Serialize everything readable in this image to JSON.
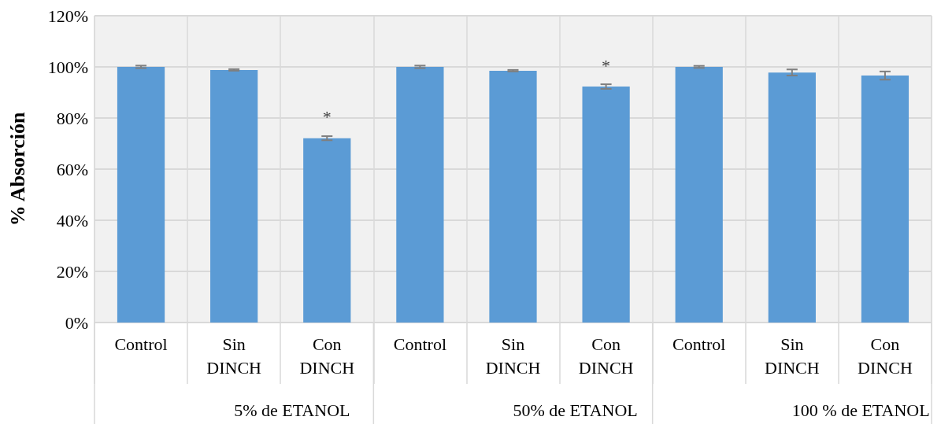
{
  "chart_data": {
    "type": "bar",
    "ylabel": "% Absorción",
    "categories": [
      "Control",
      "Sin\nDINCH",
      "Con\nDINCH",
      "Control",
      "Sin\nDINCH",
      "Con\nDINCH",
      "Control",
      "Sin\nDINCH",
      "Con\nDINCH"
    ],
    "values": [
      100,
      98.8,
      72.1,
      100,
      98.5,
      92.3,
      100,
      97.8,
      96.6
    ],
    "errors": [
      0.5,
      0.3,
      0.8,
      0.5,
      0.3,
      0.9,
      0.4,
      1.2,
      1.6
    ],
    "value_labels": [
      null,
      null,
      "*",
      null,
      null,
      "*",
      null,
      null,
      null
    ],
    "color": "#5b9bd5",
    "annotations": [
      "5% de ETANOL",
      "50% de ETANOL",
      "100 % de ETANOL"
    ],
    "ylim": [
      0,
      120
    ],
    "yticks": [
      {
        "value": 0,
        "label": "0%"
      },
      {
        "value": 20,
        "label": "20%"
      },
      {
        "value": 40,
        "label": "40%"
      },
      {
        "value": 60,
        "label": "60%"
      },
      {
        "value": 80,
        "label": "80%"
      },
      {
        "value": 100,
        "label": "100%"
      },
      {
        "value": 120,
        "label": "120%"
      }
    ],
    "grid": true
  }
}
